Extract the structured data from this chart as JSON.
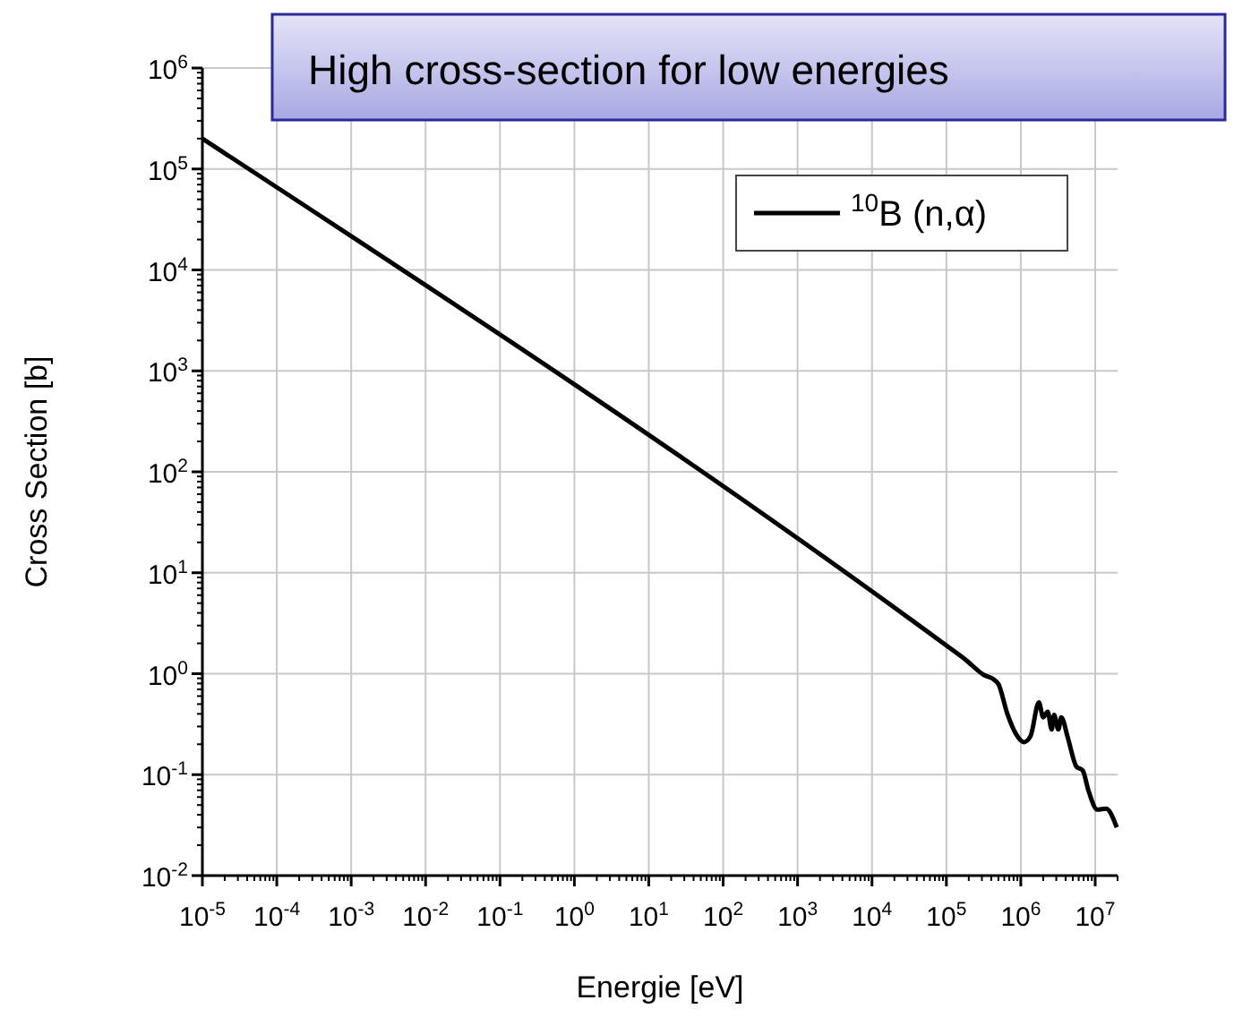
{
  "chart_data": {
    "type": "line",
    "title": "High cross-section for low energies",
    "xlabel": "Energie [eV]",
    "ylabel": "Cross Section [b]",
    "log": "xy",
    "grid": true,
    "legend": "top right",
    "marker": "none",
    "line_style": "solid",
    "xlim": [
      1e-05,
      20000000.0
    ],
    "ylim": [
      0.01,
      1000000
    ],
    "xticks": [
      {
        "value": 1e-05,
        "label": "10$^{-5}$"
      },
      {
        "value": 0.0001,
        "label": "10$^{-4}$"
      },
      {
        "value": 0.001,
        "label": "10$^{-3}$"
      },
      {
        "value": 0.01,
        "label": "10$^{-2}$"
      },
      {
        "value": 0.1,
        "label": "10$^{-1}$"
      },
      {
        "value": 1,
        "label": "10$^{0}$"
      },
      {
        "value": 10,
        "label": "10$^{1}$"
      },
      {
        "value": 100,
        "label": "10$^{2}$"
      },
      {
        "value": 1000,
        "label": "10$^{3}$"
      },
      {
        "value": 10000,
        "label": "10$^{4}$"
      },
      {
        "value": 100000,
        "label": "10$^{5}$"
      },
      {
        "value": 1000000,
        "label": "10$^{6}$"
      },
      {
        "value": 10000000,
        "label": "10$^{7}$"
      }
    ],
    "yticks": [
      {
        "value": 0.01,
        "label": "10$^{-2}$"
      },
      {
        "value": 0.1,
        "label": "10$^{-1}$"
      },
      {
        "value": 1,
        "label": "10$^{0}$"
      },
      {
        "value": 10,
        "label": "10$^{1}$"
      },
      {
        "value": 100,
        "label": "10$^{2}$"
      },
      {
        "value": 1000,
        "label": "10$^{3}$"
      },
      {
        "value": 10000,
        "label": "10$^{4}$"
      },
      {
        "value": 100000,
        "label": "10$^{5}$"
      },
      {
        "value": 1000000,
        "label": "10$^{6}$"
      }
    ],
    "series": [
      {
        "name": "$^{10}$B (n,α)",
        "color": "#000000",
        "x": [
          1e-05,
          100000.0,
          180000.0,
          320000.0,
          440000.0,
          500000.0,
          660000.0,
          870000.0,
          1100000.0,
          1350000.0,
          1750000.0,
          2000000.0,
          2300000.0,
          2600000.0,
          2800000.0,
          3200000.0,
          3500000.0,
          4300000.0,
          5600000.0,
          6800000.0,
          8100000.0,
          10700000.0,
          14000000.0,
          19500000.0
        ],
        "values": [
          200000,
          1.9,
          1.38,
          0.97,
          0.87,
          0.79,
          0.4,
          0.25,
          0.21,
          0.24,
          0.52,
          0.37,
          0.42,
          0.28,
          0.39,
          0.28,
          0.37,
          0.23,
          0.12,
          0.11,
          0.07,
          0.045,
          0.046,
          0.03
        ]
      }
    ]
  }
}
